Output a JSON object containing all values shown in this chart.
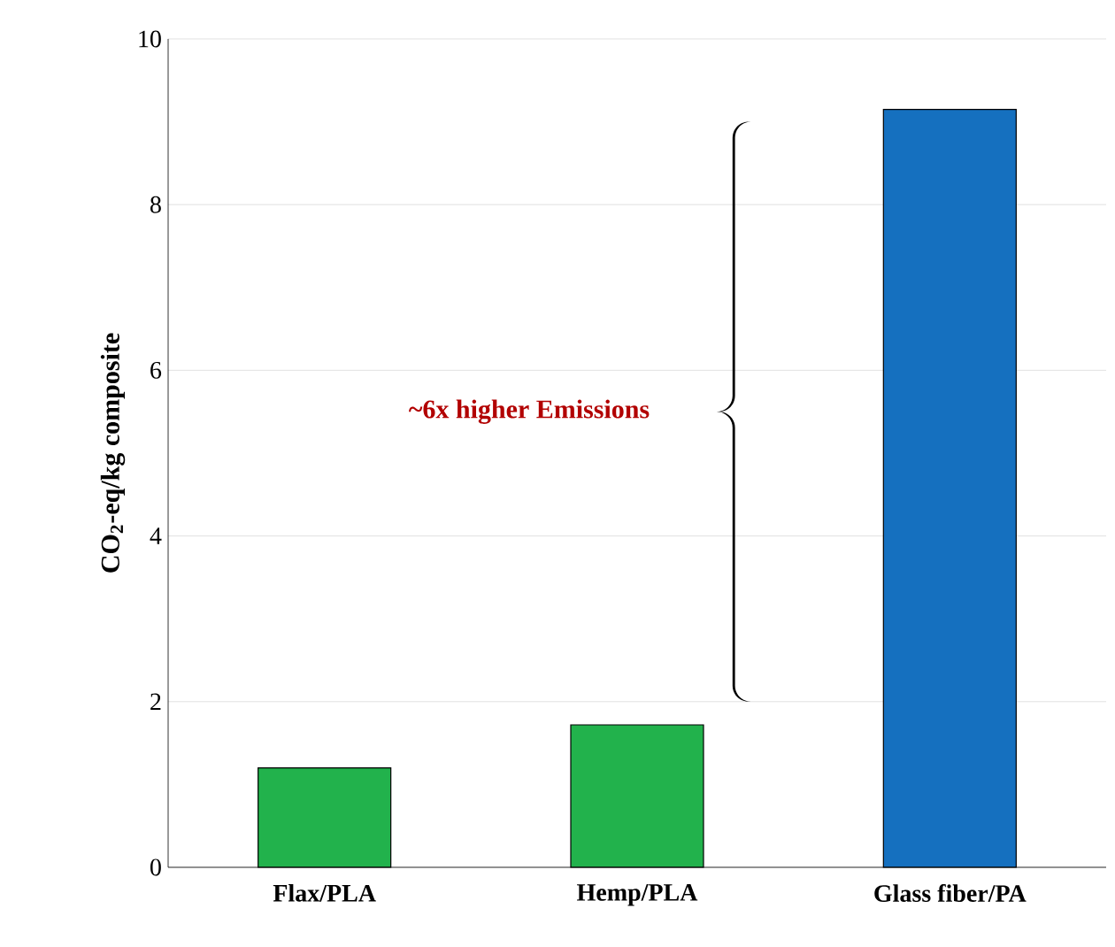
{
  "chart_data": {
    "type": "bar",
    "ylabel": "CO$_{2}$-eq/kg composite",
    "categories": [
      "Flax/PLA",
      "Hemp/PLA",
      "Glass fiber/PA"
    ],
    "values": [
      1.2,
      1.72,
      9.15
    ],
    "colors": [
      "#22b24c",
      "#22b24c",
      "#1570bf"
    ],
    "ylim": [
      0,
      10
    ],
    "yticks": [
      0,
      2,
      4,
      6,
      8,
      10
    ],
    "grid": "y",
    "annotations": [
      "~6x higher Emissions"
    ]
  }
}
